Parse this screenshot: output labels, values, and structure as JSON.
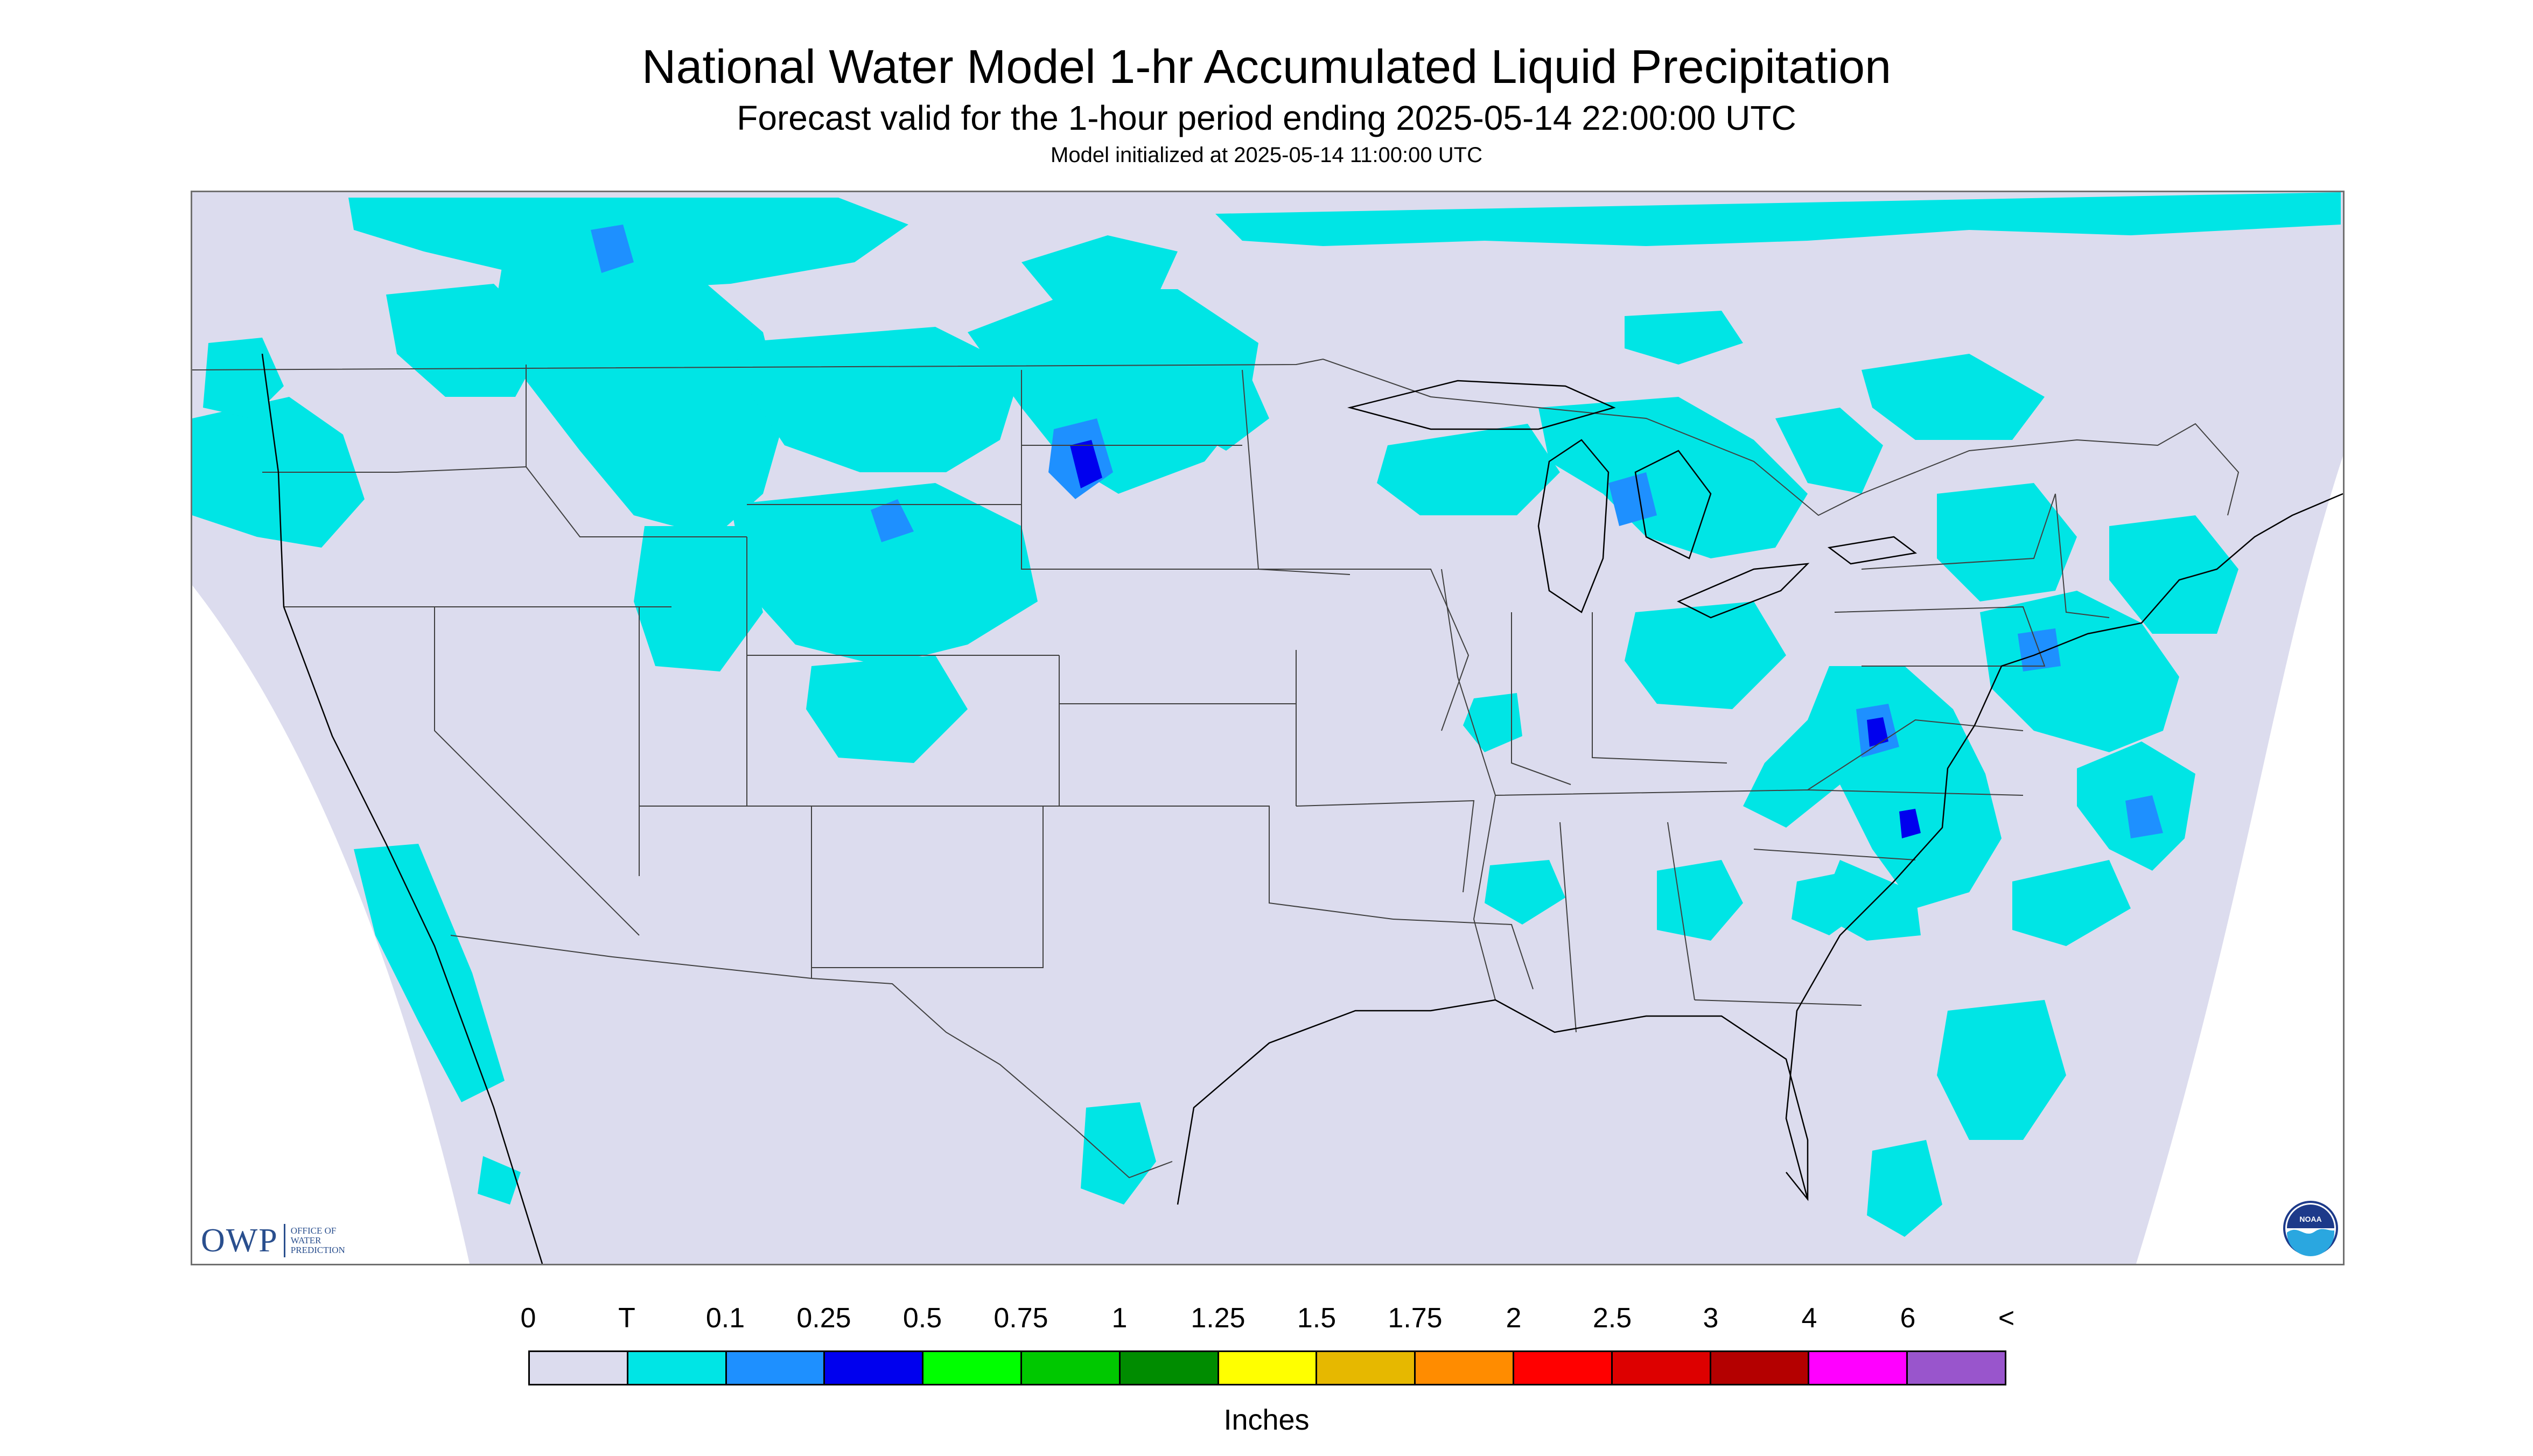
{
  "header": {
    "title": "National Water Model 1-hr Accumulated Liquid Precipitation",
    "subtitle": "Forecast valid for the 1-hour period ending 2025-05-14 22:00:00 UTC",
    "init": "Model initialized at 2025-05-14 11:00:00 UTC"
  },
  "map": {
    "background_color": "#ffffff",
    "domain_color": "#dcdcee",
    "trace_color": "#00e5e5",
    "light_blue_color": "#1e90ff",
    "blue_color": "#0000ee",
    "boundary_color": "#404040"
  },
  "logos": {
    "owp_letters": "OWP",
    "owp_words": [
      "OFFICE OF",
      "WATER",
      "PREDICTION"
    ],
    "noaa_text": "NOAA"
  },
  "legend": {
    "labels": [
      "0",
      "T",
      "0.1",
      "0.25",
      "0.5",
      "0.75",
      "1",
      "1.25",
      "1.5",
      "1.75",
      "2",
      "2.5",
      "3",
      "4",
      "6",
      "<"
    ],
    "colors": [
      "#dcdcee",
      "#00e5e5",
      "#1e90ff",
      "#0000ee",
      "#00ff00",
      "#00c800",
      "#008c00",
      "#ffff00",
      "#e6b800",
      "#ff8c00",
      "#ff0000",
      "#dd0000",
      "#b40000",
      "#ff00ff",
      "#9955cc"
    ],
    "units": "Inches"
  }
}
